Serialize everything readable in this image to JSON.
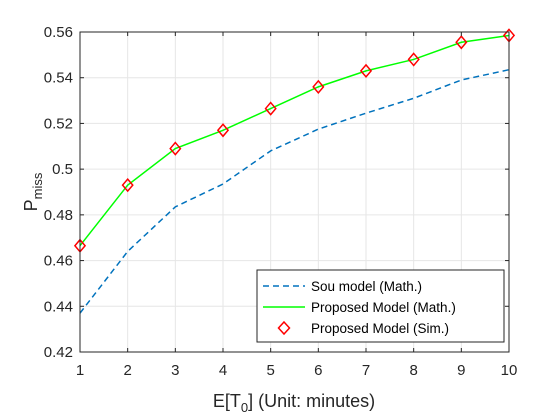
{
  "chart_data": {
    "type": "line",
    "x": [
      1,
      2,
      3,
      4,
      5,
      6,
      7,
      8,
      9,
      10
    ],
    "xlim": [
      1,
      10
    ],
    "ylim": [
      0.42,
      0.56
    ],
    "xticks": [
      "1",
      "2",
      "3",
      "4",
      "5",
      "6",
      "7",
      "8",
      "9",
      "10"
    ],
    "yticks": [
      "0.42",
      "0.44",
      "0.46",
      "0.48",
      "0.5",
      "0.52",
      "0.54",
      "0.56"
    ],
    "xlabel": {
      "prefix": "E[T",
      "subscript": "0",
      "suffix": "] (Unit: minutes)"
    },
    "ylabel": {
      "main": "P",
      "subscript": "miss"
    },
    "grid": true,
    "legend_position": "bottom-right",
    "series": [
      {
        "name": "Sou model (Math.)",
        "style": "dashed-line",
        "color": "#0072BD",
        "values": [
          0.437,
          0.464,
          0.4835,
          0.4935,
          0.508,
          0.5175,
          0.5245,
          0.531,
          0.539,
          0.5435
        ]
      },
      {
        "name": "Proposed Model (Math.)",
        "style": "solid-line",
        "color": "#00FF00",
        "values": [
          0.4665,
          0.493,
          0.509,
          0.517,
          0.5265,
          0.536,
          0.543,
          0.548,
          0.5555,
          0.5585
        ]
      },
      {
        "name": "Proposed Model (Sim.)",
        "style": "diamond-markers",
        "color": "#FF0000",
        "values": [
          0.4665,
          0.493,
          0.509,
          0.517,
          0.5265,
          0.536,
          0.543,
          0.548,
          0.5555,
          0.5585
        ]
      }
    ]
  }
}
